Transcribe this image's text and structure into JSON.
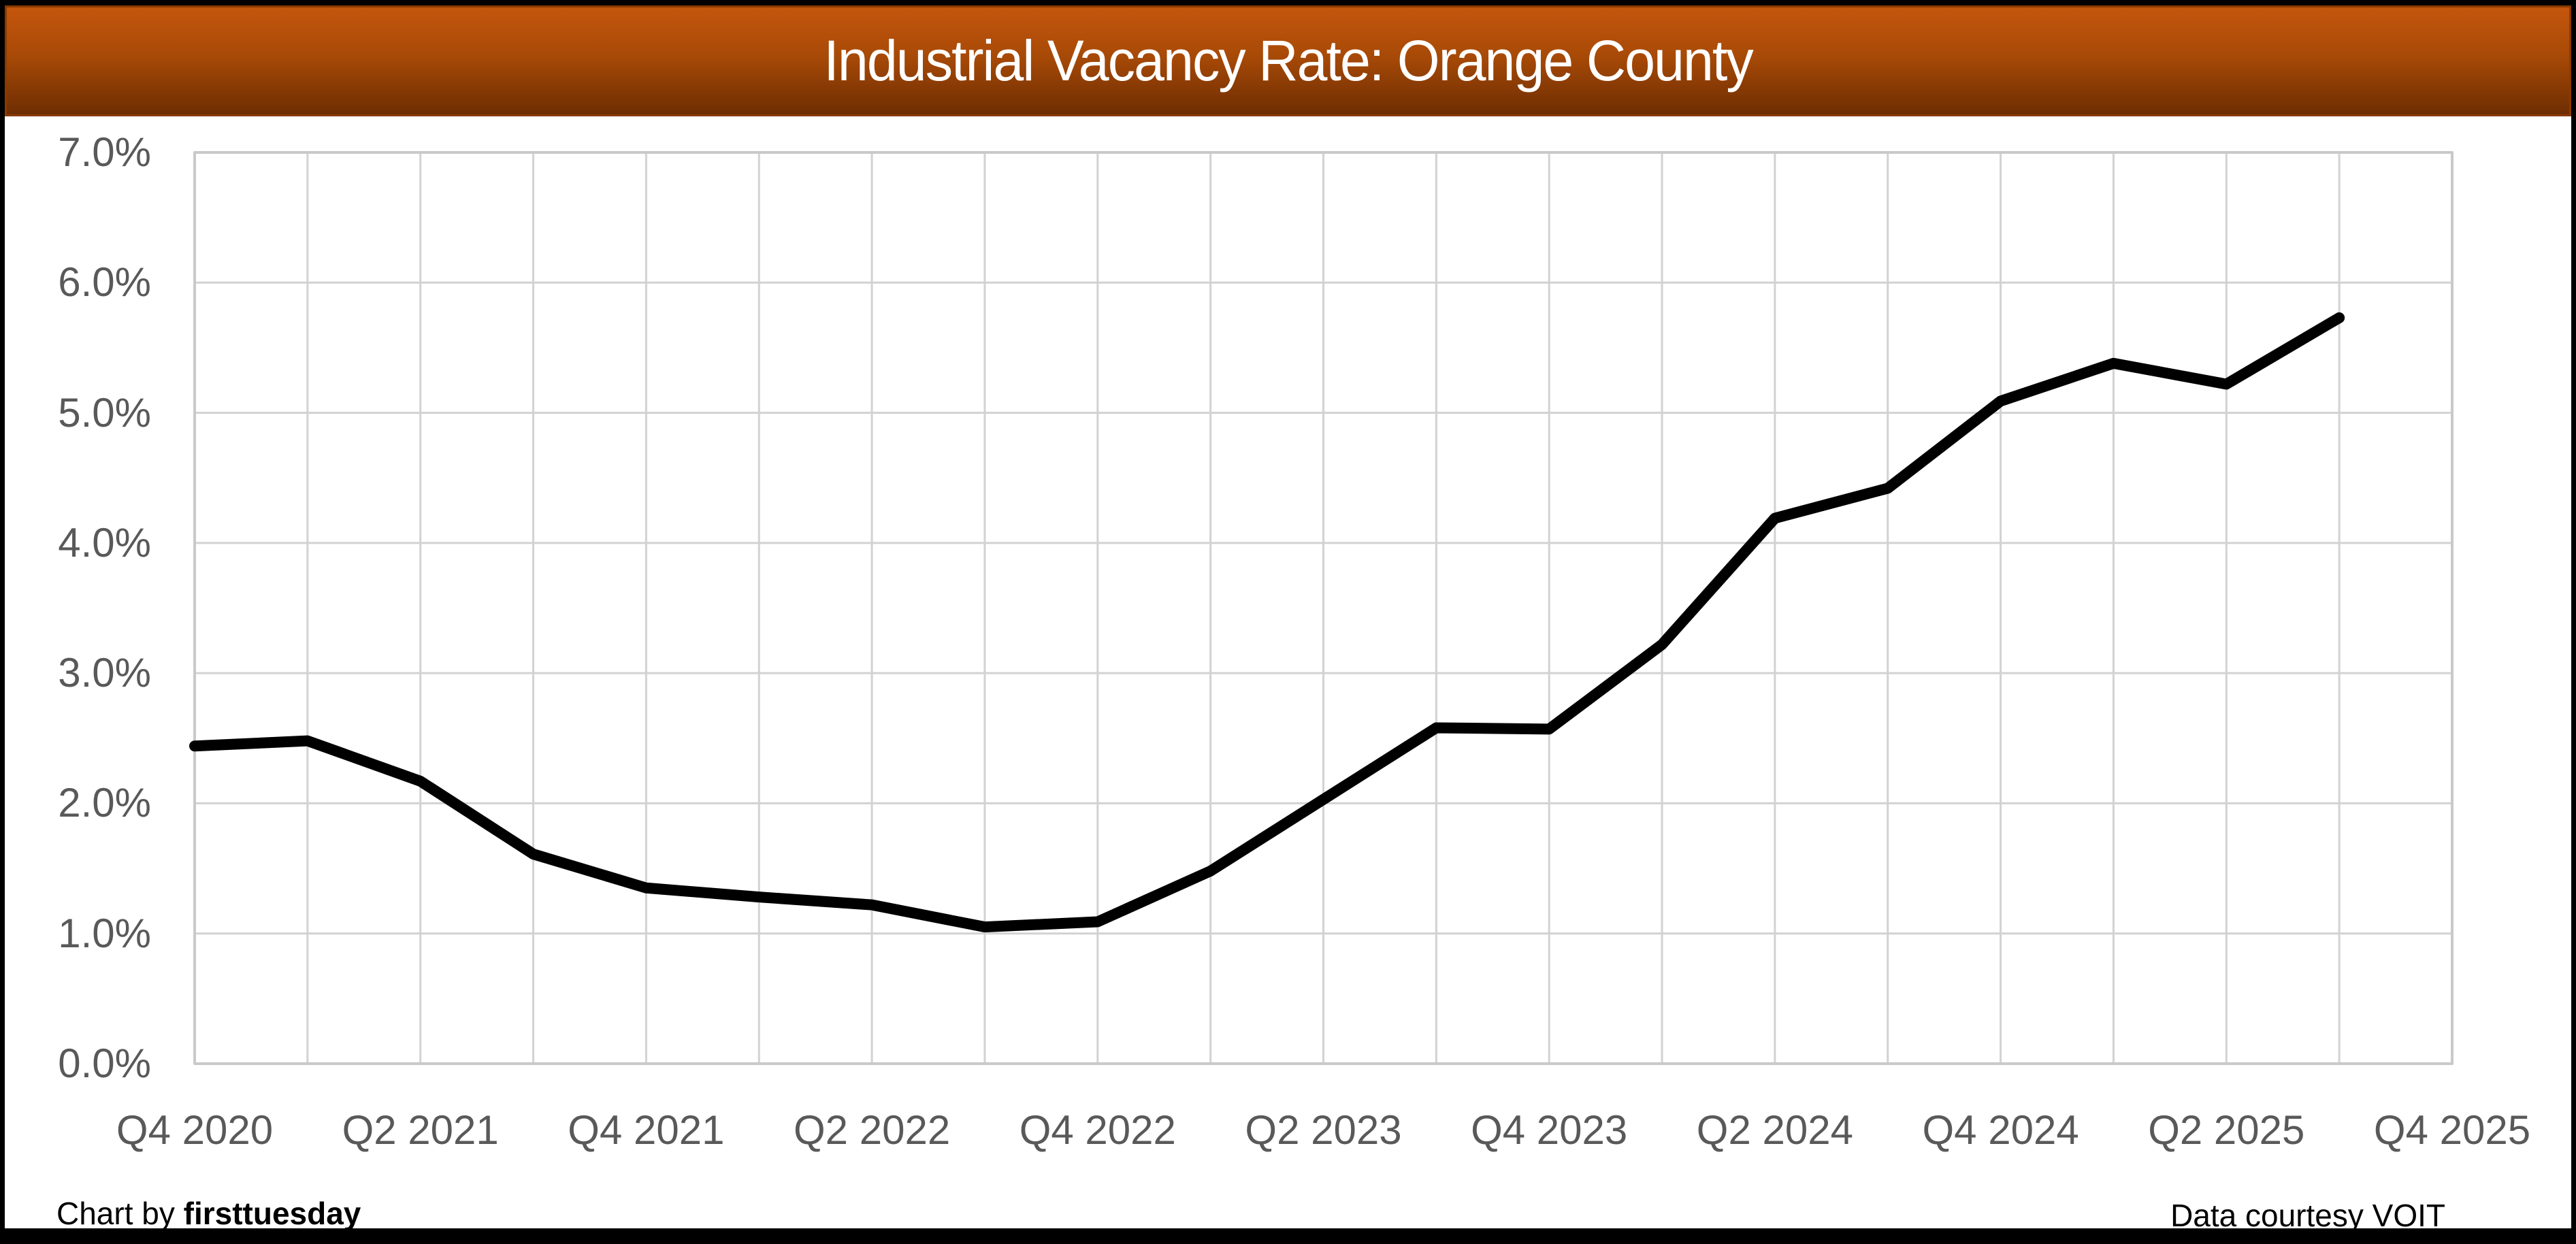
{
  "title": {
    "text": "Industrial Vacancy Rate: Orange County"
  },
  "footer": {
    "credit_prefix": "Chart by ",
    "credit_brand": "firsttuesday",
    "data_source": "Data courtesy VOIT"
  },
  "colors": {
    "title_bar_top": "#C4560D",
    "title_bar_bottom": "#6E2D02",
    "title_text": "#FFFFFF",
    "axis_label": "#595959",
    "gridline": "#D2D2D2",
    "plot_border": "#C9C9C9",
    "line": "#000000",
    "outer_border": "#000000"
  },
  "chart_data": {
    "type": "line",
    "title": "Industrial Vacancy Rate: Orange County",
    "x": [
      "Q4 2020",
      "Q1 2021",
      "Q2 2021",
      "Q3 2021",
      "Q4 2021",
      "Q1 2022",
      "Q2 2022",
      "Q3 2022",
      "Q4 2022",
      "Q1 2023",
      "Q2 2023",
      "Q3 2023",
      "Q4 2023",
      "Q1 2024",
      "Q2 2024",
      "Q3 2024",
      "Q4 2024",
      "Q1 2025",
      "Q2 2025",
      "Q3 2025"
    ],
    "values": [
      2.44,
      2.48,
      2.17,
      1.61,
      1.35,
      1.28,
      1.22,
      1.05,
      1.09,
      1.48,
      2.03,
      2.58,
      2.57,
      3.22,
      4.19,
      4.42,
      5.09,
      5.38,
      5.22,
      5.73
    ],
    "unit": "%",
    "series_name": "Industrial vacancy rate",
    "x_tick_labels": [
      "Q4 2020",
      "Q2 2021",
      "Q4 2021",
      "Q2 2022",
      "Q4 2022",
      "Q2 2023",
      "Q4 2023",
      "Q2 2024",
      "Q4 2024",
      "Q2 2025",
      "Q4 2025"
    ],
    "x_slots": 21,
    "y_tick_labels": [
      "0.0%",
      "1.0%",
      "2.0%",
      "3.0%",
      "4.0%",
      "5.0%",
      "6.0%",
      "7.0%"
    ],
    "ylim": [
      0,
      7
    ],
    "grid": "major-x-and-y",
    "legend": false
  }
}
